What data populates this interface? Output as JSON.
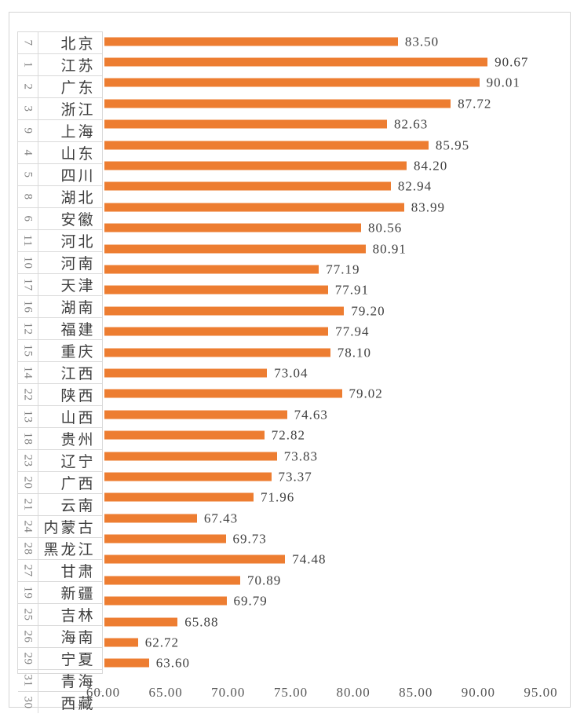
{
  "chart_data": {
    "type": "bar",
    "orientation": "horizontal",
    "title": "",
    "bar_color": "#ED7D31",
    "grid": false,
    "legend": false,
    "x_axis": {
      "min": 60,
      "max": 95,
      "step": 5,
      "tick_labels": [
        "60.00",
        "65.00",
        "70.00",
        "75.00",
        "80.00",
        "85.00",
        "90.00",
        "95.00"
      ]
    },
    "category_axis_levels": [
      "rank",
      "province"
    ],
    "rows": [
      {
        "rank": "7",
        "province": "北京",
        "value": 83.5,
        "label": "83.50"
      },
      {
        "rank": "1",
        "province": "江苏",
        "value": 90.67,
        "label": "90.67"
      },
      {
        "rank": "2",
        "province": "广东",
        "value": 90.01,
        "label": "90.01"
      },
      {
        "rank": "3",
        "province": "浙江",
        "value": 87.72,
        "label": "87.72"
      },
      {
        "rank": "9",
        "province": "上海",
        "value": 82.63,
        "label": "82.63"
      },
      {
        "rank": "4",
        "province": "山东",
        "value": 85.95,
        "label": "85.95"
      },
      {
        "rank": "5",
        "province": "四川",
        "value": 84.2,
        "label": "84.20"
      },
      {
        "rank": "8",
        "province": "湖北",
        "value": 82.94,
        "label": "82.94"
      },
      {
        "rank": "6",
        "province": "安徽",
        "value": 83.99,
        "label": "83.99"
      },
      {
        "rank": "11",
        "province": "河北",
        "value": 80.56,
        "label": "80.56"
      },
      {
        "rank": "10",
        "province": "河南",
        "value": 80.91,
        "label": "80.91"
      },
      {
        "rank": "17",
        "province": "天津",
        "value": 77.19,
        "label": "77.19"
      },
      {
        "rank": "16",
        "province": "湖南",
        "value": 77.91,
        "label": "77.91"
      },
      {
        "rank": "12",
        "province": "福建",
        "value": 79.2,
        "label": "79.20"
      },
      {
        "rank": "15",
        "province": "重庆",
        "value": 77.94,
        "label": "77.94"
      },
      {
        "rank": "14",
        "province": "江西",
        "value": 78.1,
        "label": "78.10"
      },
      {
        "rank": "22",
        "province": "陕西",
        "value": 73.04,
        "label": "73.04"
      },
      {
        "rank": "13",
        "province": "山西",
        "value": 79.02,
        "label": "79.02"
      },
      {
        "rank": "18",
        "province": "贵州",
        "value": 74.63,
        "label": "74.63"
      },
      {
        "rank": "23",
        "province": "辽宁",
        "value": 72.82,
        "label": "72.82"
      },
      {
        "rank": "20",
        "province": "广西",
        "value": 73.83,
        "label": "73.83"
      },
      {
        "rank": "21",
        "province": "云南",
        "value": 73.37,
        "label": "73.37"
      },
      {
        "rank": "24",
        "province": "内蒙古",
        "value": 71.96,
        "label": "71.96"
      },
      {
        "rank": "28",
        "province": "黑龙江",
        "value": 67.43,
        "label": "67.43"
      },
      {
        "rank": "27",
        "province": "甘肃",
        "value": 69.73,
        "label": "69.73"
      },
      {
        "rank": "19",
        "province": "新疆",
        "value": 74.48,
        "label": "74.48"
      },
      {
        "rank": "25",
        "province": "吉林",
        "value": 70.89,
        "label": "70.89"
      },
      {
        "rank": "26",
        "province": "海南",
        "value": 69.79,
        "label": "69.79"
      },
      {
        "rank": "29",
        "province": "宁夏",
        "value": 65.88,
        "label": "65.88"
      },
      {
        "rank": "31",
        "province": "青海",
        "value": 62.72,
        "label": "62.72"
      },
      {
        "rank": "30",
        "province": "西藏",
        "value": 63.6,
        "label": "63.60"
      }
    ]
  },
  "colors": {
    "bar": "#ED7D31",
    "frame_border": "#D5D5D5",
    "grid_line": "#D9D9D9",
    "rank_text": "#808080",
    "province_text": "#3d3d3d",
    "value_label_text": "#404040",
    "axis_tick_text": "#595959",
    "background": "#ffffff"
  }
}
